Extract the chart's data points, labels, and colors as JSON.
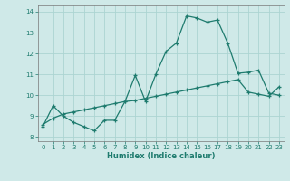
{
  "xlabel": "Humidex (Indice chaleur)",
  "background_color": "#cfe9e8",
  "grid_color": "#acd4d2",
  "line_color": "#1e7b6e",
  "xlim": [
    -0.5,
    23.5
  ],
  "ylim": [
    7.8,
    14.3
  ],
  "xticks": [
    0,
    1,
    2,
    3,
    4,
    5,
    6,
    7,
    8,
    9,
    10,
    11,
    12,
    13,
    14,
    15,
    16,
    17,
    18,
    19,
    20,
    21,
    22,
    23
  ],
  "yticks": [
    8,
    9,
    10,
    11,
    12,
    13,
    14
  ],
  "curve1_x": [
    0,
    1,
    2,
    3,
    4,
    5,
    6,
    7,
    8,
    9,
    10,
    11,
    12,
    13,
    14,
    15,
    16,
    17,
    18,
    19,
    20,
    21,
    22,
    23
  ],
  "curve1_y": [
    8.5,
    9.5,
    9.0,
    8.7,
    8.5,
    8.3,
    8.8,
    8.8,
    9.7,
    10.95,
    9.7,
    11.0,
    12.1,
    12.5,
    13.8,
    13.7,
    13.5,
    13.6,
    12.5,
    11.05,
    11.1,
    11.2,
    10.1,
    10.0
  ],
  "curve2_x": [
    0,
    1,
    2,
    3,
    4,
    5,
    6,
    7,
    8,
    9,
    10,
    11,
    12,
    13,
    14,
    15,
    16,
    17,
    18,
    19,
    20,
    21,
    22,
    23
  ],
  "curve2_y": [
    8.6,
    8.9,
    9.1,
    9.2,
    9.3,
    9.4,
    9.5,
    9.6,
    9.7,
    9.75,
    9.85,
    9.95,
    10.05,
    10.15,
    10.25,
    10.35,
    10.45,
    10.55,
    10.65,
    10.75,
    10.15,
    10.05,
    9.95,
    10.4
  ]
}
